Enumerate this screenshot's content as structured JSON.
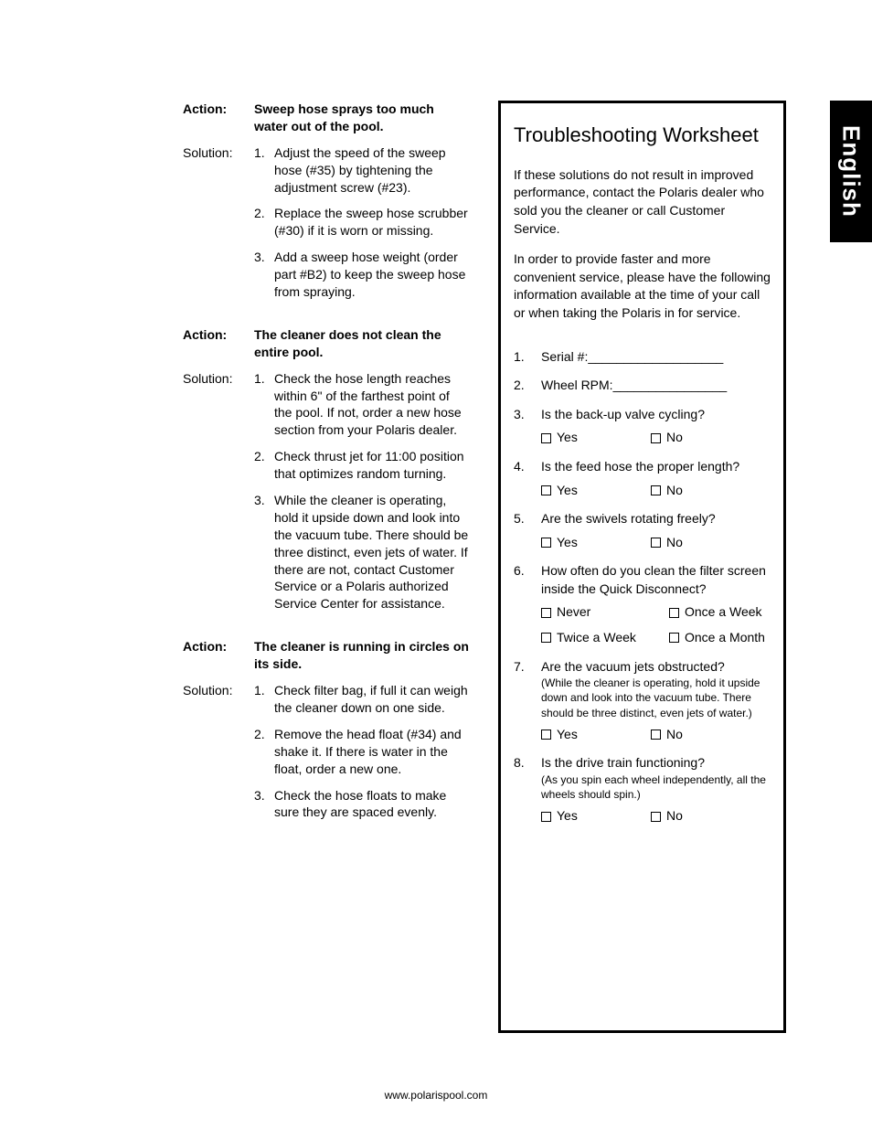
{
  "language_tab": "English",
  "footer": "www.polarispool.com",
  "left": {
    "action_label": "Action:",
    "solution_label": "Solution:",
    "blocks": [
      {
        "action": "Sweep hose sprays too much water out of the pool.",
        "solutions": [
          "Adjust the speed of the sweep hose (#35) by tightening the adjustment screw (#23).",
          "Replace the sweep hose scrubber (#30) if it is worn or missing.",
          "Add a sweep hose weight (order part #B2) to keep the sweep hose from spraying."
        ]
      },
      {
        "action": "The cleaner does not clean the entire pool.",
        "solutions": [
          "Check the hose length reaches within 6\" of the farthest point of the pool. If not, order a new hose section from your Polaris dealer.",
          "Check thrust jet for 11:00 position that optimizes random turning.",
          "While the cleaner is operating, hold it upside down and look into the vacuum tube. There should be three distinct, even jets of water. If there are not, contact Customer Service or a Polaris authorized Service Center for assistance."
        ]
      },
      {
        "action": "The cleaner is running in circles on its side.",
        "solutions": [
          "Check filter bag, if full it can weigh the cleaner down on one side.",
          "Remove the head float (#34) and shake it. If there is water in the float, order a new one.",
          "Check the hose floats to make sure they are spaced evenly."
        ]
      }
    ]
  },
  "worksheet": {
    "title": "Troubleshooting Worksheet",
    "intro1": "If these solutions do not result in improved performance, contact the Polaris dealer who sold you the cleaner or call Customer Service.",
    "intro2": "In order to provide faster and more convenient service, please have the following information available at the time of your call or when taking the Polaris in for service.",
    "yes": "Yes",
    "no": "No",
    "q1": "Serial #:___________________",
    "q2": "Wheel RPM:________________",
    "q3": "Is the back-up valve cycling?",
    "q4": "Is the feed hose the proper length?",
    "q5": "Are the swivels rotating freely?",
    "q6": "How often do you clean the filter screen inside the Quick Disconnect?",
    "q6_opts": [
      "Never",
      "Once a Week",
      "Twice a Week",
      "Once a Month"
    ],
    "q7": "Are the vacuum jets obstructed?",
    "q7_note": "(While the cleaner is operating, hold it upside down and look into the vacuum tube. There should be three distinct, even jets of water.)",
    "q8": "Is the drive train functioning?",
    "q8_note": "(As you spin each wheel independently, all the wheels should spin.)"
  }
}
